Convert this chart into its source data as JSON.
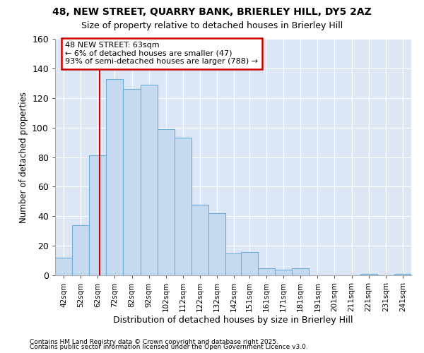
{
  "title": "48, NEW STREET, QUARRY BANK, BRIERLEY HILL, DY5 2AZ",
  "subtitle": "Size of property relative to detached houses in Brierley Hill",
  "xlabel": "Distribution of detached houses by size in Brierley Hill",
  "ylabel": "Number of detached properties",
  "footnote1": "Contains HM Land Registry data © Crown copyright and database right 2025.",
  "footnote2": "Contains public sector information licensed under the Open Government Licence v3.0.",
  "bins": [
    42,
    52,
    62,
    72,
    82,
    92,
    102,
    112,
    122,
    132,
    142,
    151,
    161,
    171,
    181,
    191,
    201,
    211,
    221,
    231,
    241
  ],
  "bin_labels": [
    "42sqm",
    "52sqm",
    "62sqm",
    "72sqm",
    "82sqm",
    "92sqm",
    "102sqm",
    "112sqm",
    "122sqm",
    "132sqm",
    "142sqm",
    "151sqm",
    "161sqm",
    "171sqm",
    "181sqm",
    "191sqm",
    "201sqm",
    "211sqm",
    "221sqm",
    "231sqm",
    "241sqm"
  ],
  "values": [
    12,
    34,
    81,
    133,
    126,
    129,
    99,
    93,
    48,
    42,
    15,
    16,
    5,
    4,
    5,
    0,
    0,
    0,
    1,
    0,
    1
  ],
  "bar_color": "#c5d9f1",
  "bar_edge_color": "#6baed6",
  "property_sqm": 63,
  "annotation_title": "48 NEW STREET: 63sqm",
  "annotation_line1": "← 6% of detached houses are smaller (47)",
  "annotation_line2": "93% of semi-detached houses are larger (788) →",
  "annotation_box_color": "#ffffff",
  "annotation_box_edge": "#cc0000",
  "vline_color": "#cc0000",
  "bg_color": "#ffffff",
  "plot_bg_color": "#dce6f5",
  "grid_color": "#ffffff",
  "ylim": [
    0,
    160
  ],
  "yticks": [
    0,
    20,
    40,
    60,
    80,
    100,
    120,
    140,
    160
  ]
}
